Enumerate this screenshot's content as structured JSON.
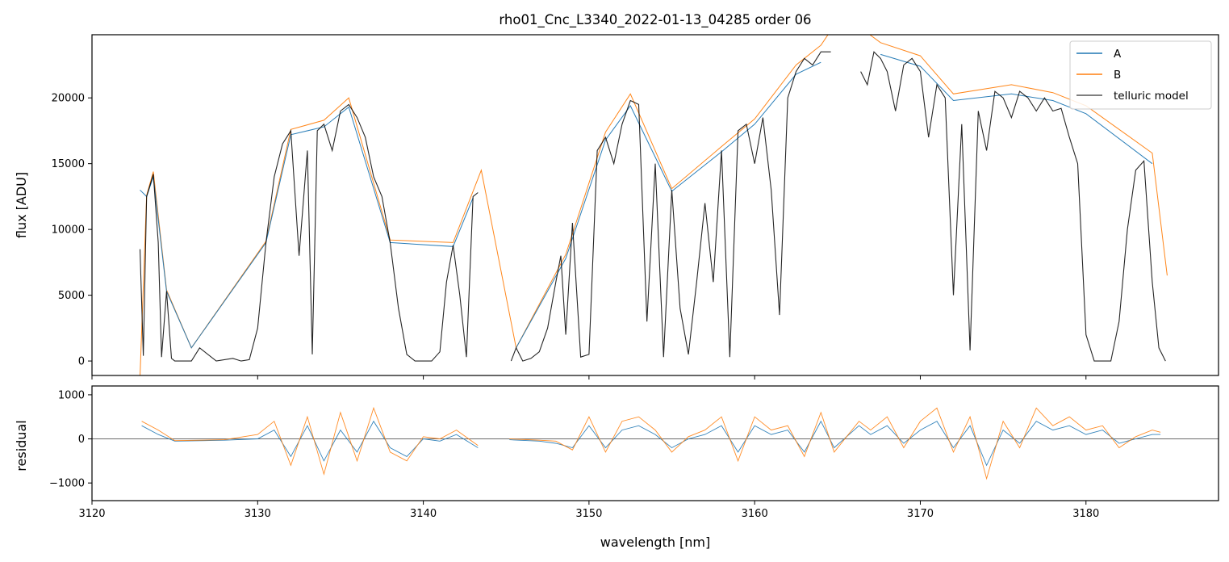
{
  "chart_data": [
    {
      "type": "line",
      "title": "rho01_Cnc_L3340_2022-01-13_04285  order 06",
      "xlabel": "",
      "ylabel": "flux [ADU]",
      "xlim": [
        3120,
        3188
      ],
      "ylim": [
        -1100,
        24800
      ],
      "xticks": [
        3120,
        3130,
        3140,
        3150,
        3160,
        3170,
        3180
      ],
      "yticks": [
        0,
        5000,
        10000,
        15000,
        20000
      ],
      "ytick_labels": [
        "0",
        "5000",
        "10000",
        "15000",
        "20000"
      ],
      "grid": false,
      "legend": {
        "placement": "top-right",
        "entries": [
          "A",
          "B",
          "telluric model"
        ]
      },
      "colors": {
        "A": "#1f77b4",
        "B": "#ff7f0e",
        "telluric model": "#000000"
      },
      "segments": [
        [
          3122.9,
          3143.5
        ],
        [
          3145.1,
          3164.8
        ],
        [
          3166.2,
          3184.9
        ]
      ],
      "series": [
        {
          "name": "telluric model",
          "x": [
            3122.9,
            3123.1,
            3123.3,
            3123.7,
            3124.0,
            3124.2,
            3124.5,
            3124.8,
            3125.0,
            3125.5,
            3126.0,
            3126.5,
            3127.5,
            3128.5,
            3129.0,
            3129.5,
            3130.0,
            3130.5,
            3131.0,
            3131.5,
            3132.0,
            3132.5,
            3133.0,
            3133.3,
            3133.6,
            3134.0,
            3134.5,
            3135.0,
            3135.5,
            3136.0,
            3136.5,
            3137.0,
            3137.5,
            3138.0,
            3138.5,
            3139.0,
            3139.5,
            3140.0,
            3140.5,
            3141.0,
            3141.4,
            3141.8,
            3142.2,
            3142.6,
            3143.0,
            3143.3,
            3145.3,
            3145.6,
            3146.0,
            3146.5,
            3147.0,
            3147.5,
            3148.0,
            3148.3,
            3148.6,
            3149.0,
            3149.5,
            3150.0,
            3150.5,
            3151.0,
            3151.5,
            3152.0,
            3152.5,
            3153.0,
            3153.5,
            3154.0,
            3154.5,
            3155.0,
            3155.5,
            3156.0,
            3156.5,
            3157.0,
            3157.5,
            3158.0,
            3158.5,
            3159.0,
            3159.5,
            3160.0,
            3160.5,
            3161.0,
            3161.5,
            3162.0,
            3162.5,
            3163.0,
            3163.5,
            3164.0,
            3164.6,
            3166.4,
            3166.8,
            3167.2,
            3167.6,
            3168.0,
            3168.5,
            3169.0,
            3169.5,
            3170.0,
            3170.5,
            3171.0,
            3171.5,
            3172.0,
            3172.5,
            3173.0,
            3173.5,
            3174.0,
            3174.5,
            3175.0,
            3175.5,
            3176.0,
            3176.5,
            3177.0,
            3177.5,
            3178.0,
            3178.5,
            3179.0,
            3179.5,
            3180.0,
            3180.5,
            3181.0,
            3181.5,
            3182.0,
            3182.5,
            3183.0,
            3183.5,
            3184.0,
            3184.4,
            3184.8
          ],
          "y": [
            8500,
            400,
            12500,
            14200,
            9000,
            300,
            5300,
            200,
            0,
            0,
            0,
            1000,
            0,
            200,
            0,
            100,
            2500,
            9000,
            14000,
            16500,
            17500,
            8000,
            16000,
            500,
            17500,
            18000,
            16000,
            19000,
            19500,
            18500,
            17000,
            14000,
            12500,
            9000,
            4000,
            500,
            0,
            0,
            0,
            700,
            6000,
            8800,
            5000,
            300,
            12500,
            12800,
            0,
            1000,
            0,
            200,
            700,
            2500,
            6000,
            8000,
            2000,
            10500,
            300,
            500,
            16000,
            17000,
            15000,
            18000,
            19800,
            19500,
            3000,
            15000,
            300,
            13000,
            4000,
            500,
            6000,
            12000,
            6000,
            16000,
            300,
            17500,
            18000,
            15000,
            18500,
            13000,
            3500,
            20000,
            22000,
            23000,
            22500,
            23500,
            23500,
            22000,
            21000,
            23500,
            23000,
            22000,
            19000,
            22500,
            23000,
            22000,
            17000,
            21000,
            20000,
            5000,
            18000,
            800,
            19000,
            16000,
            20500,
            20000,
            18500,
            20500,
            20000,
            19000,
            20000,
            19000,
            19200,
            17000,
            15000,
            2000,
            0,
            0,
            0,
            3000,
            10000,
            14500,
            15200,
            6000,
            1000,
            0
          ]
        },
        {
          "name": "A",
          "x": [
            3122.9,
            3123.3,
            3123.7,
            3124.5,
            3126.0,
            3130.5,
            3132.0,
            3134.0,
            3135.5,
            3138.0,
            3141.8,
            3143.0,
            3145.6,
            3148.6,
            3151.0,
            3152.5,
            3155.0,
            3158.0,
            3160.0,
            3162.5,
            3164.0,
            3167.6,
            3170.0,
            3172.0,
            3175.5,
            3178.0,
            3180.0,
            3184.0
          ],
          "y": [
            13000,
            12500,
            14000,
            5300,
            1000,
            9000,
            17200,
            17800,
            19300,
            9000,
            8700,
            12400,
            1000,
            7800,
            16800,
            19400,
            12900,
            15900,
            18000,
            21800,
            22700,
            23300,
            22400,
            19800,
            20300,
            19800,
            18800,
            15000
          ]
        },
        {
          "name": "B",
          "x": [
            3122.9,
            3123.3,
            3123.7,
            3124.5,
            3126.0,
            3130.5,
            3132.0,
            3134.0,
            3135.5,
            3138.0,
            3141.8,
            3143.0,
            3143.5,
            3145.6,
            3148.6,
            3151.0,
            3152.5,
            3155.0,
            3158.0,
            3160.0,
            3162.5,
            3164.0,
            3164.8,
            3166.2,
            3167.6,
            3170.0,
            3172.0,
            3175.5,
            3178.0,
            3180.0,
            3184.0,
            3184.9
          ],
          "y": [
            -1200,
            12600,
            14400,
            5400,
            1000,
            9100,
            17600,
            18300,
            20000,
            9200,
            9000,
            12900,
            14500,
            1000,
            8100,
            17400,
            20300,
            13100,
            16300,
            18400,
            22500,
            24000,
            25500,
            25500,
            24200,
            23200,
            20300,
            21000,
            20400,
            19400,
            15800,
            6500
          ]
        }
      ]
    },
    {
      "type": "line",
      "title": "",
      "xlabel": "wavelength [nm]",
      "ylabel": "residual",
      "xlim": [
        3120,
        3188
      ],
      "ylim": [
        -1400,
        1200
      ],
      "xticks": [
        3120,
        3130,
        3140,
        3150,
        3160,
        3170,
        3180
      ],
      "xtick_labels": [
        "3120",
        "3130",
        "3140",
        "3150",
        "3160",
        "3170",
        "3180"
      ],
      "yticks": [
        1000,
        0,
        -1000
      ],
      "ytick_labels": [
        "1000",
        "0",
        "−1000"
      ],
      "grid": false,
      "reference_line": 0,
      "colors": {
        "A": "#1f77b4",
        "B": "#ff7f0e",
        "reference": "#555555"
      },
      "series": [
        {
          "name": "A",
          "x": [
            3123.0,
            3124.0,
            3125.0,
            3128.0,
            3130.0,
            3131.0,
            3132.0,
            3133.0,
            3134.0,
            3135.0,
            3136.0,
            3137.0,
            3138.0,
            3139.0,
            3140.0,
            3141.0,
            3142.0,
            3143.3,
            3145.2,
            3147.0,
            3148.0,
            3149.0,
            3150.0,
            3151.0,
            3152.0,
            3153.0,
            3154.0,
            3155.0,
            3156.0,
            3157.0,
            3158.0,
            3159.0,
            3160.0,
            3161.0,
            3162.0,
            3163.0,
            3164.0,
            3164.8,
            3166.3,
            3167.0,
            3168.0,
            3169.0,
            3170.0,
            3171.0,
            3172.0,
            3173.0,
            3174.0,
            3175.0,
            3176.0,
            3177.0,
            3178.0,
            3179.0,
            3180.0,
            3181.0,
            3182.0,
            3183.0,
            3184.0,
            3184.5
          ],
          "y": [
            300,
            100,
            -50,
            -30,
            0,
            200,
            -400,
            300,
            -500,
            200,
            -300,
            400,
            -200,
            -400,
            0,
            -50,
            100,
            -200,
            -20,
            -50,
            -100,
            -200,
            300,
            -200,
            200,
            300,
            100,
            -200,
            0,
            100,
            300,
            -300,
            300,
            100,
            200,
            -300,
            400,
            -200,
            300,
            100,
            300,
            -100,
            200,
            400,
            -200,
            300,
            -600,
            200,
            -100,
            400,
            200,
            300,
            100,
            200,
            -100,
            0,
            100,
            100
          ]
        },
        {
          "name": "B",
          "x": [
            3123.0,
            3124.0,
            3125.0,
            3128.0,
            3130.0,
            3131.0,
            3132.0,
            3133.0,
            3134.0,
            3135.0,
            3136.0,
            3137.0,
            3138.0,
            3139.0,
            3140.0,
            3141.0,
            3142.0,
            3143.3,
            3145.2,
            3147.0,
            3148.0,
            3149.0,
            3150.0,
            3151.0,
            3152.0,
            3153.0,
            3154.0,
            3155.0,
            3156.0,
            3157.0,
            3158.0,
            3159.0,
            3160.0,
            3161.0,
            3162.0,
            3163.0,
            3164.0,
            3164.8,
            3166.3,
            3167.0,
            3168.0,
            3169.0,
            3170.0,
            3171.0,
            3172.0,
            3173.0,
            3174.0,
            3175.0,
            3176.0,
            3177.0,
            3178.0,
            3179.0,
            3180.0,
            3181.0,
            3182.0,
            3183.0,
            3184.0,
            3184.5
          ],
          "y": [
            400,
            200,
            -40,
            -20,
            100,
            400,
            -600,
            500,
            -800,
            600,
            -500,
            700,
            -300,
            -500,
            50,
            0,
            200,
            -150,
            0,
            -30,
            -50,
            -250,
            500,
            -300,
            400,
            500,
            200,
            -300,
            50,
            200,
            500,
            -500,
            500,
            200,
            300,
            -400,
            600,
            -300,
            400,
            200,
            500,
            -200,
            400,
            700,
            -300,
            500,
            -900,
            400,
            -200,
            700,
            300,
            500,
            200,
            300,
            -200,
            50,
            200,
            150
          ]
        }
      ]
    }
  ]
}
